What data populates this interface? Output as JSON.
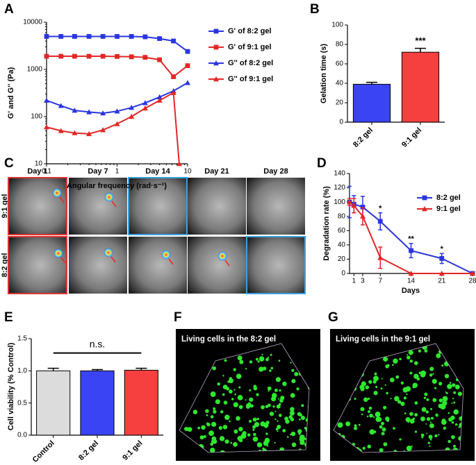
{
  "chart_data": [
    {
      "type": "line",
      "xscale": "log",
      "yscale": "log",
      "xlabel": "Angular frequency (rad·s⁻¹)",
      "ylabel": "G' and G'' (Pa)",
      "xlim": [
        0.1,
        10
      ],
      "xticks": [
        0.1,
        1,
        10
      ],
      "ylim": [
        10,
        10000
      ],
      "yticks": [
        10,
        100,
        1000,
        10000
      ],
      "legend": "right",
      "series": [
        {
          "name": "G' of 8:2 gel",
          "color": "#2a35e0",
          "marker": "square",
          "x": [
            0.1,
            0.16,
            0.25,
            0.4,
            0.63,
            1,
            1.6,
            2.5,
            4,
            6.3,
            10
          ],
          "values": [
            5000,
            5000,
            5000,
            5000,
            5000,
            5000,
            5000,
            4900,
            4500,
            4000,
            2400
          ]
        },
        {
          "name": "G' of 9:1 gel",
          "color": "#e32626",
          "marker": "square",
          "x": [
            0.1,
            0.16,
            0.25,
            0.4,
            0.63,
            1,
            1.6,
            2.5,
            4,
            6.3,
            10
          ],
          "values": [
            1900,
            1900,
            1900,
            1900,
            1900,
            1880,
            1850,
            1800,
            1600,
            700,
            1200
          ]
        },
        {
          "name": "G'' of 8:2 gel",
          "color": "#2a35e0",
          "marker": "triangle",
          "x": [
            0.1,
            0.16,
            0.25,
            0.4,
            0.63,
            1,
            1.6,
            2.5,
            4,
            6.3,
            10
          ],
          "values": [
            220,
            170,
            135,
            125,
            118,
            130,
            155,
            195,
            260,
            350,
            520
          ]
        },
        {
          "name": "G'' of 9:1 gel",
          "color": "#e32626",
          "marker": "triangle",
          "x": [
            0.1,
            0.16,
            0.25,
            0.4,
            0.63,
            1,
            1.6,
            2.5,
            4,
            6.3,
            7.6
          ],
          "values": [
            60,
            50,
            45,
            43,
            52,
            70,
            100,
            150,
            220,
            320,
            10
          ]
        }
      ]
    },
    {
      "type": "bar",
      "ylabel": "Gelation time (s)",
      "categories": [
        "8:2 gel",
        "9:1 gel"
      ],
      "values": [
        39,
        72
      ],
      "errors": [
        2,
        4
      ],
      "colors": [
        "#3a44f5",
        "#f5403f"
      ],
      "ylim": [
        0,
        100
      ],
      "yticks": [
        0,
        20,
        40,
        60,
        80,
        100
      ],
      "annotations": [
        {
          "text": "***",
          "category": "9:1 gel"
        }
      ]
    },
    {
      "type": "line",
      "xlabel": "Days",
      "ylabel": "Degradation rate (%)",
      "xlim": [
        0,
        28
      ],
      "xticks": [
        1,
        3,
        7,
        14,
        21,
        28
      ],
      "ylim": [
        0,
        140
      ],
      "yticks": [
        0,
        20,
        40,
        60,
        80,
        100,
        120,
        140
      ],
      "legend": "upper right",
      "series": [
        {
          "name": "8:2 gel",
          "color": "#2a35e0",
          "marker": "square",
          "x": [
            0,
            1,
            3,
            7,
            14,
            21,
            28
          ],
          "values": [
            100,
            97,
            93,
            73,
            32,
            21,
            0
          ],
          "errors": [
            22,
            12,
            15,
            12,
            10,
            7,
            1
          ]
        },
        {
          "name": "9:1 gel",
          "color": "#e32626",
          "marker": "triangle",
          "x": [
            0,
            1,
            3,
            7,
            14,
            21,
            28
          ],
          "values": [
            100,
            95,
            80,
            22,
            0,
            0,
            0
          ],
          "errors": [
            5,
            10,
            12,
            15,
            0,
            0,
            0
          ]
        }
      ],
      "annotations": [
        {
          "text": "*",
          "x": 7
        },
        {
          "text": "**",
          "x": 14
        },
        {
          "text": "*",
          "x": 21
        }
      ]
    },
    {
      "type": "bar",
      "ylabel": "Cell viability (% Control)",
      "categories": [
        "Control",
        "8:2 gel",
        "9:1 gel"
      ],
      "values": [
        1.0,
        1.0,
        1.01
      ],
      "errors": [
        0.04,
        0.02,
        0.03
      ],
      "colors": [
        "#dcdcdc",
        "#3a44f5",
        "#f5403f"
      ],
      "ylim": [
        0,
        1.5
      ],
      "yticks": [
        {
          "value": 0,
          "label": "0.0"
        },
        {
          "value": 0.5,
          "label": "0.5"
        },
        {
          "value": 1,
          "label": "1.0"
        },
        {
          "value": 1.5,
          "label": "1.5"
        }
      ],
      "annotations": [
        {
          "text": "n.s."
        }
      ]
    }
  ],
  "figure": {
    "panel_labels": [
      "A",
      "B",
      "C",
      "D",
      "E",
      "F",
      "G"
    ],
    "imaging": {
      "days": [
        "Day 1",
        "Day 7",
        "Day 14",
        "Day 21",
        "Day 28"
      ],
      "rows": [
        "9:1 gel",
        "8:2 gel"
      ]
    },
    "confocal": [
      "Living cells in the 8:2 gel",
      "Living cells in the 9:1 gel"
    ]
  }
}
